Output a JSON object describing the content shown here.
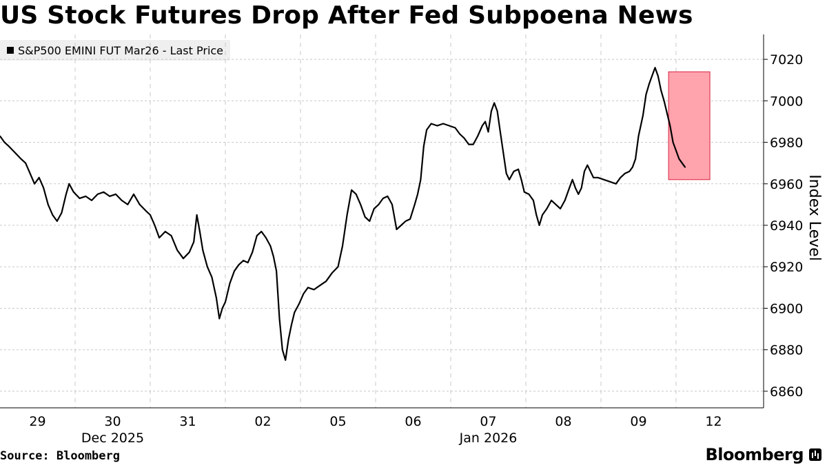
{
  "header": {
    "title": "US Stock Futures Drop After Fed Subpoena News"
  },
  "footer": {
    "source": "Source: Bloomberg",
    "brand": "Bloomberg"
  },
  "colors": {
    "line": "#000000",
    "grid": "#c8c8c8",
    "highlight_fill": "#ffa3ad",
    "highlight_stroke": "#d6203a",
    "legend_bg": "#efefef"
  },
  "chart_data": {
    "type": "line",
    "title": "US Stock Futures Drop After Fed Subpoena News",
    "series_name": "S&P500 EMINI FUT Mar26 - Last Price",
    "ylabel": "Index Level",
    "ylim": [
      6852,
      7032
    ],
    "yticks": [
      6860,
      6880,
      6900,
      6920,
      6940,
      6960,
      6980,
      7000,
      7020
    ],
    "xlim": [
      0,
      9.4
    ],
    "xticks": [
      {
        "x": 0.5,
        "label": "29"
      },
      {
        "x": 1.5,
        "label": "30"
      },
      {
        "x": 2.5,
        "label": "31"
      },
      {
        "x": 3.5,
        "label": "02"
      },
      {
        "x": 4.5,
        "label": "05"
      },
      {
        "x": 5.5,
        "label": "06"
      },
      {
        "x": 6.5,
        "label": "07"
      },
      {
        "x": 7.5,
        "label": "08"
      },
      {
        "x": 8.5,
        "label": "09"
      },
      {
        "x": 9.5,
        "label": "12"
      }
    ],
    "month_labels": [
      {
        "x": 1.5,
        "label": "Dec 2025"
      },
      {
        "x": 6.5,
        "label": "Jan 2026"
      }
    ],
    "day_boundaries": [
      0,
      1,
      2,
      3,
      4,
      5,
      6,
      7,
      8,
      9
    ],
    "highlight": {
      "x0": 8.9,
      "x1": 9.45,
      "y0": 6962,
      "y1": 7014
    },
    "points": [
      [
        0.0,
        6983
      ],
      [
        0.06,
        6980
      ],
      [
        0.12,
        6978
      ],
      [
        0.2,
        6975
      ],
      [
        0.28,
        6972
      ],
      [
        0.34,
        6970
      ],
      [
        0.4,
        6965
      ],
      [
        0.46,
        6960
      ],
      [
        0.52,
        6963
      ],
      [
        0.58,
        6958
      ],
      [
        0.64,
        6950
      ],
      [
        0.7,
        6945
      ],
      [
        0.76,
        6942
      ],
      [
        0.82,
        6946
      ],
      [
        0.88,
        6955
      ],
      [
        0.92,
        6960
      ],
      [
        0.98,
        6956
      ],
      [
        1.06,
        6953
      ],
      [
        1.14,
        6954
      ],
      [
        1.22,
        6952
      ],
      [
        1.3,
        6955
      ],
      [
        1.38,
        6956
      ],
      [
        1.46,
        6954
      ],
      [
        1.54,
        6955
      ],
      [
        1.62,
        6952
      ],
      [
        1.7,
        6950
      ],
      [
        1.78,
        6955
      ],
      [
        1.86,
        6950
      ],
      [
        1.94,
        6947
      ],
      [
        2.0,
        6945
      ],
      [
        2.06,
        6940
      ],
      [
        2.12,
        6934
      ],
      [
        2.2,
        6937
      ],
      [
        2.28,
        6935
      ],
      [
        2.36,
        6928
      ],
      [
        2.44,
        6924
      ],
      [
        2.52,
        6927
      ],
      [
        2.58,
        6932
      ],
      [
        2.62,
        6945
      ],
      [
        2.66,
        6937
      ],
      [
        2.7,
        6928
      ],
      [
        2.76,
        6920
      ],
      [
        2.82,
        6915
      ],
      [
        2.88,
        6905
      ],
      [
        2.92,
        6895
      ],
      [
        2.96,
        6900
      ],
      [
        3.0,
        6903
      ],
      [
        3.06,
        6912
      ],
      [
        3.12,
        6918
      ],
      [
        3.18,
        6921
      ],
      [
        3.24,
        6923
      ],
      [
        3.3,
        6922
      ],
      [
        3.36,
        6927
      ],
      [
        3.42,
        6935
      ],
      [
        3.48,
        6937
      ],
      [
        3.54,
        6934
      ],
      [
        3.6,
        6930
      ],
      [
        3.64,
        6925
      ],
      [
        3.68,
        6918
      ],
      [
        3.72,
        6895
      ],
      [
        3.76,
        6880
      ],
      [
        3.8,
        6875
      ],
      [
        3.84,
        6885
      ],
      [
        3.88,
        6892
      ],
      [
        3.92,
        6898
      ],
      [
        3.98,
        6902
      ],
      [
        4.04,
        6907
      ],
      [
        4.1,
        6910
      ],
      [
        4.18,
        6909
      ],
      [
        4.26,
        6911
      ],
      [
        4.34,
        6913
      ],
      [
        4.42,
        6917
      ],
      [
        4.5,
        6920
      ],
      [
        4.56,
        6930
      ],
      [
        4.62,
        6945
      ],
      [
        4.68,
        6957
      ],
      [
        4.74,
        6955
      ],
      [
        4.8,
        6950
      ],
      [
        4.86,
        6944
      ],
      [
        4.92,
        6942
      ],
      [
        4.98,
        6948
      ],
      [
        5.04,
        6950
      ],
      [
        5.1,
        6953
      ],
      [
        5.16,
        6954
      ],
      [
        5.22,
        6950
      ],
      [
        5.28,
        6938
      ],
      [
        5.34,
        6940
      ],
      [
        5.4,
        6942
      ],
      [
        5.46,
        6943
      ],
      [
        5.52,
        6950
      ],
      [
        5.56,
        6955
      ],
      [
        5.6,
        6962
      ],
      [
        5.64,
        6978
      ],
      [
        5.68,
        6986
      ],
      [
        5.74,
        6989
      ],
      [
        5.82,
        6988
      ],
      [
        5.9,
        6989
      ],
      [
        5.98,
        6988
      ],
      [
        6.06,
        6987
      ],
      [
        6.12,
        6984
      ],
      [
        6.18,
        6982
      ],
      [
        6.24,
        6979
      ],
      [
        6.3,
        6979
      ],
      [
        6.36,
        6983
      ],
      [
        6.42,
        6988
      ],
      [
        6.46,
        6990
      ],
      [
        6.5,
        6985
      ],
      [
        6.54,
        6995
      ],
      [
        6.58,
        6999
      ],
      [
        6.62,
        6995
      ],
      [
        6.66,
        6985
      ],
      [
        6.7,
        6975
      ],
      [
        6.74,
        6965
      ],
      [
        6.78,
        6962
      ],
      [
        6.84,
        6966
      ],
      [
        6.9,
        6967
      ],
      [
        6.94,
        6962
      ],
      [
        6.98,
        6956
      ],
      [
        7.04,
        6955
      ],
      [
        7.1,
        6952
      ],
      [
        7.14,
        6945
      ],
      [
        7.18,
        6940
      ],
      [
        7.22,
        6945
      ],
      [
        7.28,
        6948
      ],
      [
        7.34,
        6952
      ],
      [
        7.4,
        6950
      ],
      [
        7.46,
        6948
      ],
      [
        7.52,
        6952
      ],
      [
        7.58,
        6958
      ],
      [
        7.62,
        6962
      ],
      [
        7.66,
        6958
      ],
      [
        7.7,
        6955
      ],
      [
        7.74,
        6958
      ],
      [
        7.78,
        6966
      ],
      [
        7.82,
        6969
      ],
      [
        7.86,
        6966
      ],
      [
        7.9,
        6963
      ],
      [
        7.96,
        6963
      ],
      [
        8.04,
        6962
      ],
      [
        8.12,
        6961
      ],
      [
        8.2,
        6960
      ],
      [
        8.26,
        6963
      ],
      [
        8.32,
        6965
      ],
      [
        8.38,
        6966
      ],
      [
        8.42,
        6968
      ],
      [
        8.46,
        6972
      ],
      [
        8.5,
        6983
      ],
      [
        8.56,
        6993
      ],
      [
        8.6,
        7003
      ],
      [
        8.64,
        7008
      ],
      [
        8.68,
        7012
      ],
      [
        8.72,
        7016
      ],
      [
        8.76,
        7012
      ],
      [
        8.8,
        7005
      ],
      [
        8.84,
        7000
      ],
      [
        8.88,
        6994
      ],
      [
        8.92,
        6988
      ],
      [
        8.96,
        6980
      ],
      [
        9.0,
        6976
      ],
      [
        9.04,
        6972
      ],
      [
        9.08,
        6970
      ],
      [
        9.12,
        6968
      ]
    ]
  }
}
